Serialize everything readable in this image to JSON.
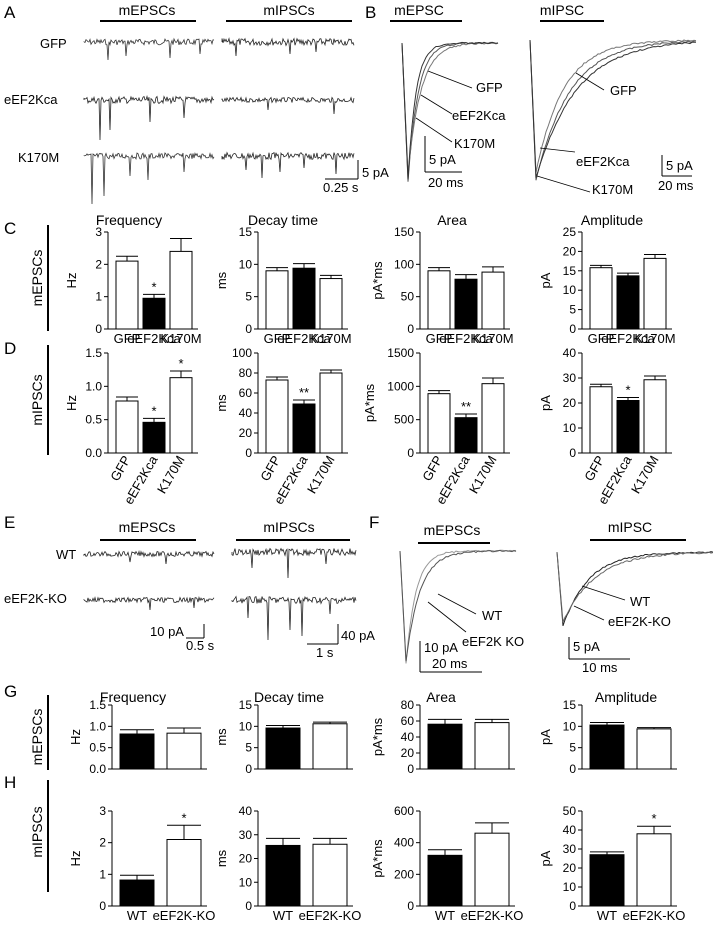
{
  "panel_labels": {
    "A": "A",
    "B": "B",
    "C": "C",
    "D": "D",
    "E": "E",
    "F": "F",
    "G": "G",
    "H": "H"
  },
  "panel_a": {
    "col1": "mEPSCs",
    "col2": "mIPSCs",
    "rows": [
      "GFP",
      "eEF2Kca",
      "K170M"
    ],
    "scale_y": "5 pA",
    "scale_x": "0.25 s"
  },
  "panel_b": {
    "left_title": "mEPSC",
    "right_title": "mIPSC",
    "left_labels": [
      "GFP",
      "eEF2Kca",
      "K170M"
    ],
    "right_labels": [
      "GFP",
      "eEF2Kca",
      "K170M"
    ],
    "left_scale_y": "5 pA",
    "left_scale_x": "20 ms",
    "right_scale_y": "5 pA",
    "right_scale_x": "20 ms"
  },
  "panel_e": {
    "col1": "mEPSCs",
    "col2": "mIPSCs",
    "rows": [
      "WT",
      "eEF2K-KO"
    ],
    "scale1_y": "10 pA",
    "scale1_x": "0.5 s",
    "scale2_y": "40 pA",
    "scale2_x": "1 s"
  },
  "panel_f": {
    "left_title": "mEPSCs",
    "right_title": "mIPSC",
    "left_labels": [
      "WT",
      "eEF2K KO"
    ],
    "right_labels": [
      "WT",
      "eEF2K-KO"
    ],
    "left_scale_y": "10 pA",
    "left_scale_x": "20 ms",
    "right_scale_y": "5 pA",
    "right_scale_x": "10 ms"
  },
  "row_labels": {
    "C": "mEPSCs",
    "D": "mIPSCs",
    "G": "mEPSCs",
    "H": "mIPSCs"
  },
  "col_titles_cd": [
    "Frequency",
    "Decay time",
    "Area",
    "Amplitude"
  ],
  "col_titles_gh": [
    "Frequency",
    "Decay time",
    "Area",
    "Amplitude"
  ],
  "chart_data": [
    {
      "type": "bar",
      "panel": "C",
      "title": "Frequency",
      "ylabel": "Hz",
      "ylim": [
        0,
        3
      ],
      "yticks": [
        "0",
        "1",
        "2",
        "3"
      ],
      "categories": [
        "GFP",
        "eEF2Kca",
        "K170M"
      ],
      "values": [
        2.1,
        0.95,
        2.4
      ],
      "errors": [
        0.15,
        0.12,
        0.4
      ],
      "fills": [
        "#ffffff",
        "#000000",
        "#ffffff"
      ],
      "sig": [
        "",
        "*",
        ""
      ]
    },
    {
      "type": "bar",
      "panel": "C",
      "title": "Decay time",
      "ylabel": "ms",
      "ylim": [
        0,
        15
      ],
      "yticks": [
        "0",
        "5",
        "10",
        "15"
      ],
      "categories": [
        "GFP",
        "eEF2Kca",
        "K170M"
      ],
      "values": [
        9.0,
        9.4,
        7.8
      ],
      "errors": [
        0.5,
        0.7,
        0.5
      ],
      "fills": [
        "#ffffff",
        "#000000",
        "#ffffff"
      ],
      "sig": [
        "",
        "",
        ""
      ]
    },
    {
      "type": "bar",
      "panel": "C",
      "title": "Area",
      "ylabel": "pA*ms",
      "ylim": [
        0,
        150
      ],
      "yticks": [
        "0",
        "50",
        "100",
        "150"
      ],
      "categories": [
        "GFP",
        "eEF2Kca",
        "K170M"
      ],
      "values": [
        90,
        77,
        88
      ],
      "errors": [
        5,
        7,
        8
      ],
      "fills": [
        "#ffffff",
        "#000000",
        "#ffffff"
      ],
      "sig": [
        "",
        "",
        ""
      ]
    },
    {
      "type": "bar",
      "panel": "C",
      "title": "Amplitude",
      "ylabel": "pA",
      "ylim": [
        0,
        25
      ],
      "yticks": [
        "0",
        "5",
        "10",
        "15",
        "20",
        "25"
      ],
      "categories": [
        "GFP",
        "eEF2Kca",
        "K170M"
      ],
      "values": [
        15.8,
        13.7,
        18.2
      ],
      "errors": [
        0.6,
        0.7,
        1.0
      ],
      "fills": [
        "#ffffff",
        "#000000",
        "#ffffff"
      ],
      "sig": [
        "",
        "",
        ""
      ]
    },
    {
      "type": "bar",
      "panel": "D",
      "ylabel": "Hz",
      "ylim": [
        0,
        1.5
      ],
      "yticks": [
        "0.0",
        "0.5",
        "1.0",
        "1.5"
      ],
      "categories": [
        "GFP",
        "eEF2Kca",
        "K170M"
      ],
      "values": [
        0.78,
        0.46,
        1.13
      ],
      "errors": [
        0.06,
        0.06,
        0.1
      ],
      "fills": [
        "#ffffff",
        "#000000",
        "#ffffff"
      ],
      "sig": [
        "",
        "*",
        "*"
      ]
    },
    {
      "type": "bar",
      "panel": "D",
      "ylabel": "ms",
      "ylim": [
        0,
        100
      ],
      "yticks": [
        "0",
        "20",
        "40",
        "60",
        "80",
        "100"
      ],
      "categories": [
        "GFP",
        "eEF2Kca",
        "K170M"
      ],
      "values": [
        73,
        49,
        80
      ],
      "errors": [
        3,
        4,
        3
      ],
      "fills": [
        "#ffffff",
        "#000000",
        "#ffffff"
      ],
      "sig": [
        "",
        "**",
        ""
      ]
    },
    {
      "type": "bar",
      "panel": "D",
      "ylabel": "pA*ms",
      "ylim": [
        0,
        1500
      ],
      "yticks": [
        "0",
        "500",
        "1000",
        "1500"
      ],
      "categories": [
        "GFP",
        "eEF2Kca",
        "K170M"
      ],
      "values": [
        890,
        530,
        1040
      ],
      "errors": [
        45,
        55,
        85
      ],
      "fills": [
        "#ffffff",
        "#000000",
        "#ffffff"
      ],
      "sig": [
        "",
        "**",
        ""
      ]
    },
    {
      "type": "bar",
      "panel": "D",
      "ylabel": "pA",
      "ylim": [
        0,
        40
      ],
      "yticks": [
        "0",
        "10",
        "20",
        "30",
        "40"
      ],
      "categories": [
        "GFP",
        "eEF2Kca",
        "K170M"
      ],
      "values": [
        26.5,
        21,
        29.3
      ],
      "errors": [
        1,
        1.2,
        1.5
      ],
      "fills": [
        "#ffffff",
        "#000000",
        "#ffffff"
      ],
      "sig": [
        "",
        "*",
        ""
      ]
    },
    {
      "type": "bar",
      "panel": "G",
      "title": "Frequency",
      "ylabel": "Hz",
      "ylim": [
        0,
        1.5
      ],
      "yticks": [
        "0.0",
        "0.5",
        "1.0",
        "1.5"
      ],
      "categories": [
        "WT",
        "eEF2K-KO"
      ],
      "values": [
        0.82,
        0.84
      ],
      "errors": [
        0.1,
        0.12
      ],
      "fills": [
        "#000000",
        "#ffffff"
      ],
      "sig": [
        "",
        ""
      ]
    },
    {
      "type": "bar",
      "panel": "G",
      "title": "Decay time",
      "ylabel": "ms",
      "ylim": [
        0,
        15
      ],
      "yticks": [
        "0",
        "5",
        "10",
        "15"
      ],
      "categories": [
        "WT",
        "eEF2K-KO"
      ],
      "values": [
        9.6,
        10.6
      ],
      "errors": [
        0.6,
        0.4
      ],
      "fills": [
        "#000000",
        "#ffffff"
      ],
      "sig": [
        "",
        ""
      ]
    },
    {
      "type": "bar",
      "panel": "G",
      "title": "Area",
      "ylabel": "pA*ms",
      "ylim": [
        0,
        80
      ],
      "yticks": [
        "0",
        "20",
        "40",
        "60",
        "80"
      ],
      "categories": [
        "WT",
        "eEF2K-KO"
      ],
      "values": [
        56,
        58
      ],
      "errors": [
        6,
        4
      ],
      "fills": [
        "#000000",
        "#ffffff"
      ],
      "sig": [
        "",
        ""
      ]
    },
    {
      "type": "bar",
      "panel": "G",
      "title": "Amplitude",
      "ylabel": "pA",
      "ylim": [
        0,
        15
      ],
      "yticks": [
        "0",
        "5",
        "10",
        "15"
      ],
      "categories": [
        "WT",
        "eEF2K-KO"
      ],
      "values": [
        10.3,
        9.4
      ],
      "errors": [
        0.6,
        0.3
      ],
      "fills": [
        "#000000",
        "#ffffff"
      ],
      "sig": [
        "",
        ""
      ]
    },
    {
      "type": "bar",
      "panel": "H",
      "ylabel": "Hz",
      "ylim": [
        0,
        3
      ],
      "yticks": [
        "0",
        "1",
        "2",
        "3"
      ],
      "categories": [
        "WT",
        "eEF2K-KO"
      ],
      "values": [
        0.82,
        2.1
      ],
      "errors": [
        0.15,
        0.45
      ],
      "fills": [
        "#000000",
        "#ffffff"
      ],
      "sig": [
        "",
        "*"
      ]
    },
    {
      "type": "bar",
      "panel": "H",
      "ylabel": "ms",
      "ylim": [
        0,
        40
      ],
      "yticks": [
        "0",
        "10",
        "20",
        "30",
        "40"
      ],
      "categories": [
        "WT",
        "eEF2K-KO"
      ],
      "values": [
        25.5,
        26
      ],
      "errors": [
        3,
        2.5
      ],
      "fills": [
        "#000000",
        "#ffffff"
      ],
      "sig": [
        "",
        ""
      ]
    },
    {
      "type": "bar",
      "panel": "H",
      "ylabel": "pA*ms",
      "ylim": [
        0,
        600
      ],
      "yticks": [
        "0",
        "200",
        "400",
        "600"
      ],
      "categories": [
        "WT",
        "eEF2K-KO"
      ],
      "values": [
        320,
        460
      ],
      "errors": [
        35,
        65
      ],
      "fills": [
        "#000000",
        "#ffffff"
      ],
      "sig": [
        "",
        ""
      ]
    },
    {
      "type": "bar",
      "panel": "H",
      "ylabel": "pA",
      "ylim": [
        0,
        50
      ],
      "yticks": [
        "0",
        "10",
        "20",
        "30",
        "40",
        "50"
      ],
      "categories": [
        "WT",
        "eEF2K-KO"
      ],
      "values": [
        27,
        38
      ],
      "errors": [
        1.5,
        4
      ],
      "fills": [
        "#000000",
        "#ffffff"
      ],
      "sig": [
        "",
        "*"
      ]
    }
  ]
}
